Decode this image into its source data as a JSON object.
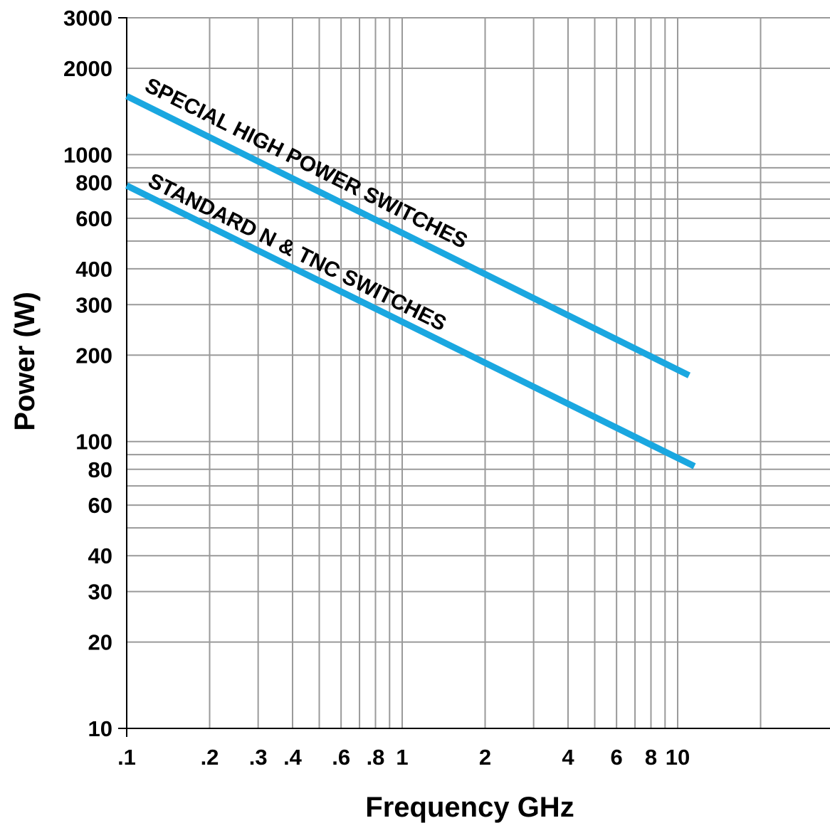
{
  "chart_data": {
    "type": "line",
    "title": "",
    "xlabel": "Frequency GHz",
    "ylabel": "Power (W)",
    "x_scale": "log",
    "y_scale": "log",
    "xlim": [
      0.1,
      20
    ],
    "ylim": [
      10,
      3000
    ],
    "grid": true,
    "legend": "none",
    "x_ticks": [
      {
        "value": 0.1,
        "label": ".1"
      },
      {
        "value": 0.2,
        "label": ".2"
      },
      {
        "value": 0.3,
        "label": ".3"
      },
      {
        "value": 0.4,
        "label": ".4"
      },
      {
        "value": 0.6,
        "label": ".6"
      },
      {
        "value": 0.8,
        "label": ".8"
      },
      {
        "value": 1,
        "label": "1"
      },
      {
        "value": 2,
        "label": "2"
      },
      {
        "value": 4,
        "label": "4"
      },
      {
        "value": 6,
        "label": "6"
      },
      {
        "value": 8,
        "label": "8"
      },
      {
        "value": 10,
        "label": "10"
      }
    ],
    "y_ticks": [
      {
        "value": 10,
        "label": "10"
      },
      {
        "value": 20,
        "label": "20"
      },
      {
        "value": 30,
        "label": "30"
      },
      {
        "value": 40,
        "label": "40"
      },
      {
        "value": 60,
        "label": "60"
      },
      {
        "value": 80,
        "label": "80"
      },
      {
        "value": 100,
        "label": "100"
      },
      {
        "value": 200,
        "label": "200"
      },
      {
        "value": 300,
        "label": "300"
      },
      {
        "value": 400,
        "label": "400"
      },
      {
        "value": 600,
        "label": "600"
      },
      {
        "value": 800,
        "label": "800"
      },
      {
        "value": 1000,
        "label": "1000"
      },
      {
        "value": 2000,
        "label": "2000"
      },
      {
        "value": 3000,
        "label": "3000"
      }
    ],
    "x_gridlines": [
      0.1,
      0.2,
      0.3,
      0.4,
      0.5,
      0.6,
      0.7,
      0.8,
      0.9,
      1,
      2,
      3,
      4,
      5,
      6,
      7,
      8,
      9,
      10,
      20
    ],
    "y_gridlines": [
      10,
      20,
      30,
      40,
      50,
      60,
      70,
      80,
      90,
      100,
      200,
      300,
      400,
      500,
      600,
      700,
      800,
      900,
      1000,
      2000,
      3000
    ],
    "series": [
      {
        "label": "SPECIAL HIGH POWER SWITCHES",
        "color": "#1aa7e0",
        "x": [
          0.1,
          11
        ],
        "y": [
          1600,
          170
        ]
      },
      {
        "label": "STANDARD N & TNC SWITCHES",
        "color": "#1aa7e0",
        "x": [
          0.1,
          11.5
        ],
        "y": [
          780,
          82
        ]
      }
    ]
  }
}
